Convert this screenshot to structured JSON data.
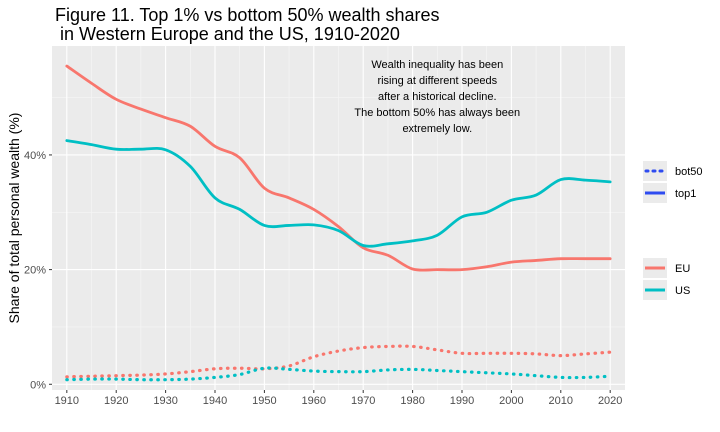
{
  "chart_data": {
    "type": "line",
    "title_line1": "Figure 11. Top 1% vs bottom 50% wealth shares",
    "title_line2": " in Western Europe and the US, 1910-2020",
    "xlabel": "",
    "ylabel": "Share of total personal wealth (%)",
    "xlim": [
      1907,
      2023
    ],
    "ylim": [
      -0.01,
      0.59
    ],
    "x_ticks": [
      1910,
      1920,
      1930,
      1940,
      1950,
      1960,
      1970,
      1980,
      1990,
      2000,
      2010,
      2020
    ],
    "x_tick_labels": [
      "1910",
      "1920",
      "1930",
      "1940",
      "1950",
      "1960",
      "1970",
      "1980",
      "1990",
      "2000",
      "2010",
      "2020"
    ],
    "y_ticks": [
      0,
      0.2,
      0.4
    ],
    "y_tick_labels": [
      "0%",
      "20%",
      "40%"
    ],
    "grid": true,
    "colors": {
      "EU": "#F8766D",
      "US": "#00BFC4",
      "top1_legend": "#2E4BF0",
      "panel": "#EBEBEB",
      "grid": "#FFFFFF"
    },
    "annotation": [
      "Wealth inequality has been",
      "rising at different speeds",
      "after a historical decline.",
      "The bottom 50% has always been",
      "extremely low."
    ],
    "legend_linetype": {
      "placement": "right",
      "entries": [
        "bot50",
        "top1"
      ]
    },
    "legend_region": {
      "placement": "right",
      "entries": [
        "EU",
        "US"
      ]
    },
    "x": [
      1910,
      1915,
      1920,
      1925,
      1930,
      1935,
      1940,
      1945,
      1950,
      1955,
      1960,
      1965,
      1970,
      1975,
      1980,
      1985,
      1990,
      1995,
      2000,
      2005,
      2010,
      2015,
      2020
    ],
    "series": [
      {
        "region": "EU",
        "measure": "top1",
        "values": [
          0.555,
          0.525,
          0.497,
          0.48,
          0.465,
          0.45,
          0.415,
          0.395,
          0.342,
          0.325,
          0.305,
          0.275,
          0.238,
          0.225,
          0.201,
          0.2,
          0.2,
          0.205,
          0.213,
          0.216,
          0.219,
          0.219,
          0.219
        ]
      },
      {
        "region": "US",
        "measure": "top1",
        "values": [
          0.425,
          0.418,
          0.41,
          0.41,
          0.409,
          0.38,
          0.325,
          0.305,
          0.277,
          0.277,
          0.278,
          0.268,
          0.242,
          0.245,
          0.25,
          0.26,
          0.292,
          0.3,
          0.321,
          0.33,
          0.357,
          0.356,
          0.353
        ]
      },
      {
        "region": "EU",
        "measure": "bot50",
        "values": [
          0.013,
          0.014,
          0.015,
          0.016,
          0.018,
          0.022,
          0.027,
          0.028,
          0.027,
          0.032,
          0.048,
          0.058,
          0.064,
          0.066,
          0.066,
          0.06,
          0.054,
          0.054,
          0.054,
          0.053,
          0.05,
          0.053,
          0.056
        ]
      },
      {
        "region": "US",
        "measure": "bot50",
        "values": [
          0.008,
          0.009,
          0.009,
          0.008,
          0.008,
          0.009,
          0.012,
          0.017,
          0.028,
          0.026,
          0.023,
          0.022,
          0.022,
          0.025,
          0.026,
          0.024,
          0.022,
          0.02,
          0.018,
          0.015,
          0.012,
          0.012,
          0.014
        ]
      }
    ]
  }
}
